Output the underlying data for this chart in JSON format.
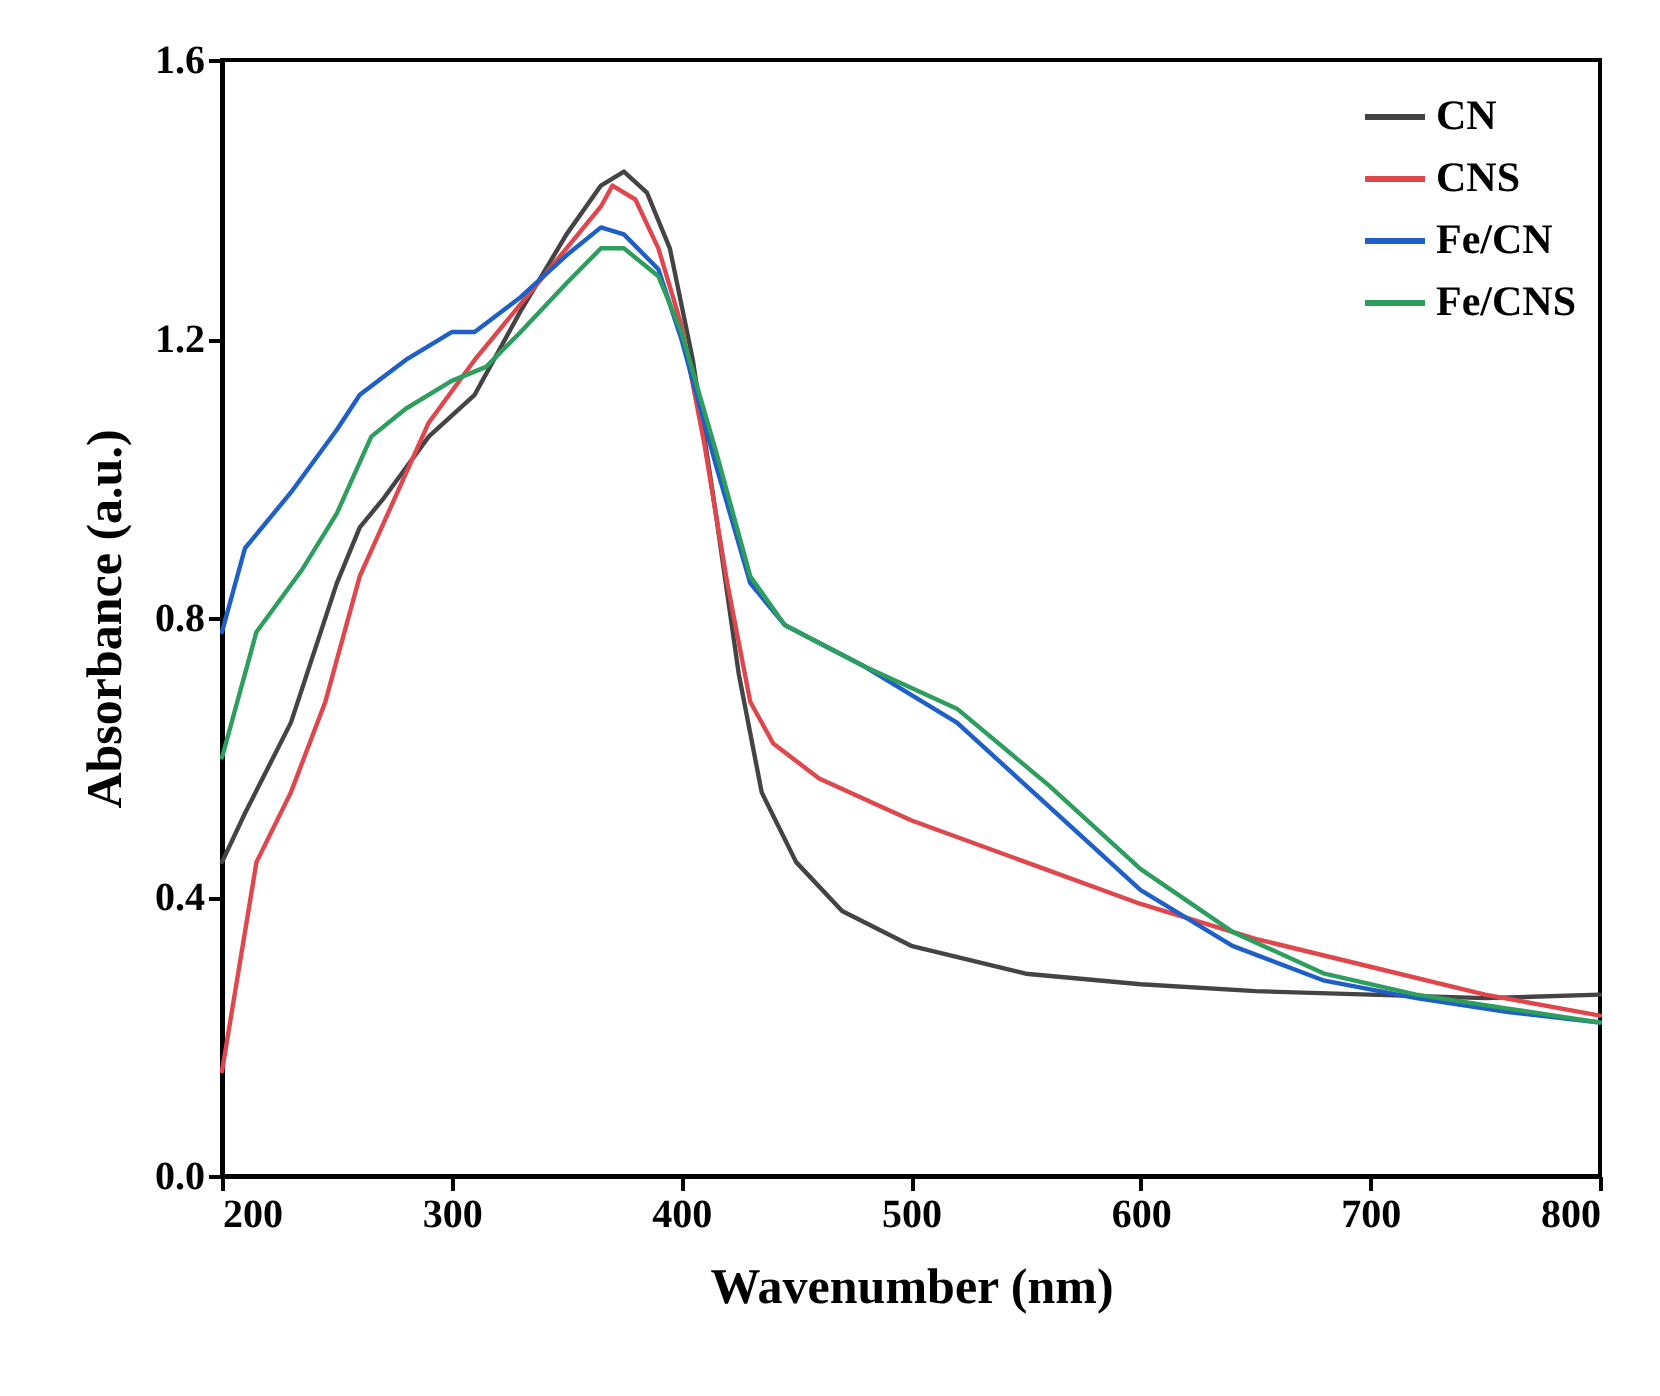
{
  "chart_data": {
    "type": "line",
    "xlabel": "Wavenumber (nm)",
    "ylabel": "Absorbance (a.u.)",
    "xlim": [
      200,
      800
    ],
    "xticks": [
      200,
      300,
      400,
      500,
      600,
      700,
      800
    ],
    "ylim": [
      0,
      1.6
    ],
    "yticks": [
      {
        "value": 0,
        "label": "0.0"
      },
      {
        "value": 0.4,
        "label": "0.4"
      },
      {
        "value": 0.8,
        "label": "0.8"
      },
      {
        "value": 1.2,
        "label": "1.2"
      },
      {
        "value": 1.6,
        "label": "1.6"
      }
    ],
    "grid": false,
    "legend": "top right",
    "line_style": "solid",
    "series": [
      {
        "name": "CN",
        "color": "#444444",
        "x": [
          200,
          210,
          230,
          250,
          260,
          270,
          290,
          310,
          330,
          350,
          365,
          375,
          385,
          395,
          405,
          415,
          425,
          435,
          450,
          470,
          500,
          550,
          600,
          650,
          700,
          750,
          800
        ],
        "values": [
          0.45,
          0.52,
          0.65,
          0.85,
          0.93,
          0.97,
          1.06,
          1.12,
          1.24,
          1.35,
          1.42,
          1.44,
          1.41,
          1.33,
          1.17,
          0.95,
          0.72,
          0.55,
          0.45,
          0.38,
          0.33,
          0.29,
          0.275,
          0.265,
          0.26,
          0.255,
          0.26
        ]
      },
      {
        "name": "CNS",
        "color": "#e0474c",
        "x": [
          200,
          205,
          215,
          230,
          245,
          260,
          275,
          290,
          310,
          330,
          350,
          365,
          370,
          380,
          390,
          400,
          410,
          420,
          430,
          440,
          460,
          500,
          550,
          600,
          650,
          700,
          750,
          800
        ],
        "values": [
          0.15,
          0.25,
          0.45,
          0.55,
          0.68,
          0.86,
          0.97,
          1.08,
          1.17,
          1.25,
          1.33,
          1.39,
          1.42,
          1.4,
          1.33,
          1.22,
          1.05,
          0.85,
          0.68,
          0.62,
          0.57,
          0.51,
          0.45,
          0.39,
          0.34,
          0.3,
          0.26,
          0.23
        ]
      },
      {
        "name": "Fe/CN",
        "color": "#1f5fc8",
        "x": [
          200,
          210,
          230,
          250,
          260,
          280,
          300,
          310,
          330,
          350,
          365,
          375,
          390,
          400,
          415,
          430,
          445,
          480,
          520,
          560,
          600,
          640,
          680,
          720,
          760,
          800
        ],
        "values": [
          0.78,
          0.9,
          0.98,
          1.07,
          1.12,
          1.17,
          1.21,
          1.21,
          1.26,
          1.32,
          1.36,
          1.35,
          1.3,
          1.2,
          1.02,
          0.85,
          0.79,
          0.73,
          0.65,
          0.53,
          0.41,
          0.33,
          0.28,
          0.255,
          0.235,
          0.22
        ]
      },
      {
        "name": "Fe/CNS",
        "color": "#2e9e5e",
        "x": [
          200,
          215,
          235,
          250,
          265,
          280,
          300,
          315,
          330,
          350,
          365,
          375,
          390,
          400,
          415,
          430,
          445,
          480,
          520,
          560,
          600,
          640,
          680,
          720,
          760,
          800
        ],
        "values": [
          0.6,
          0.78,
          0.87,
          0.95,
          1.06,
          1.1,
          1.14,
          1.16,
          1.21,
          1.28,
          1.33,
          1.33,
          1.29,
          1.21,
          1.04,
          0.86,
          0.79,
          0.73,
          0.67,
          0.56,
          0.44,
          0.35,
          0.29,
          0.26,
          0.24,
          0.22
        ]
      }
    ]
  }
}
